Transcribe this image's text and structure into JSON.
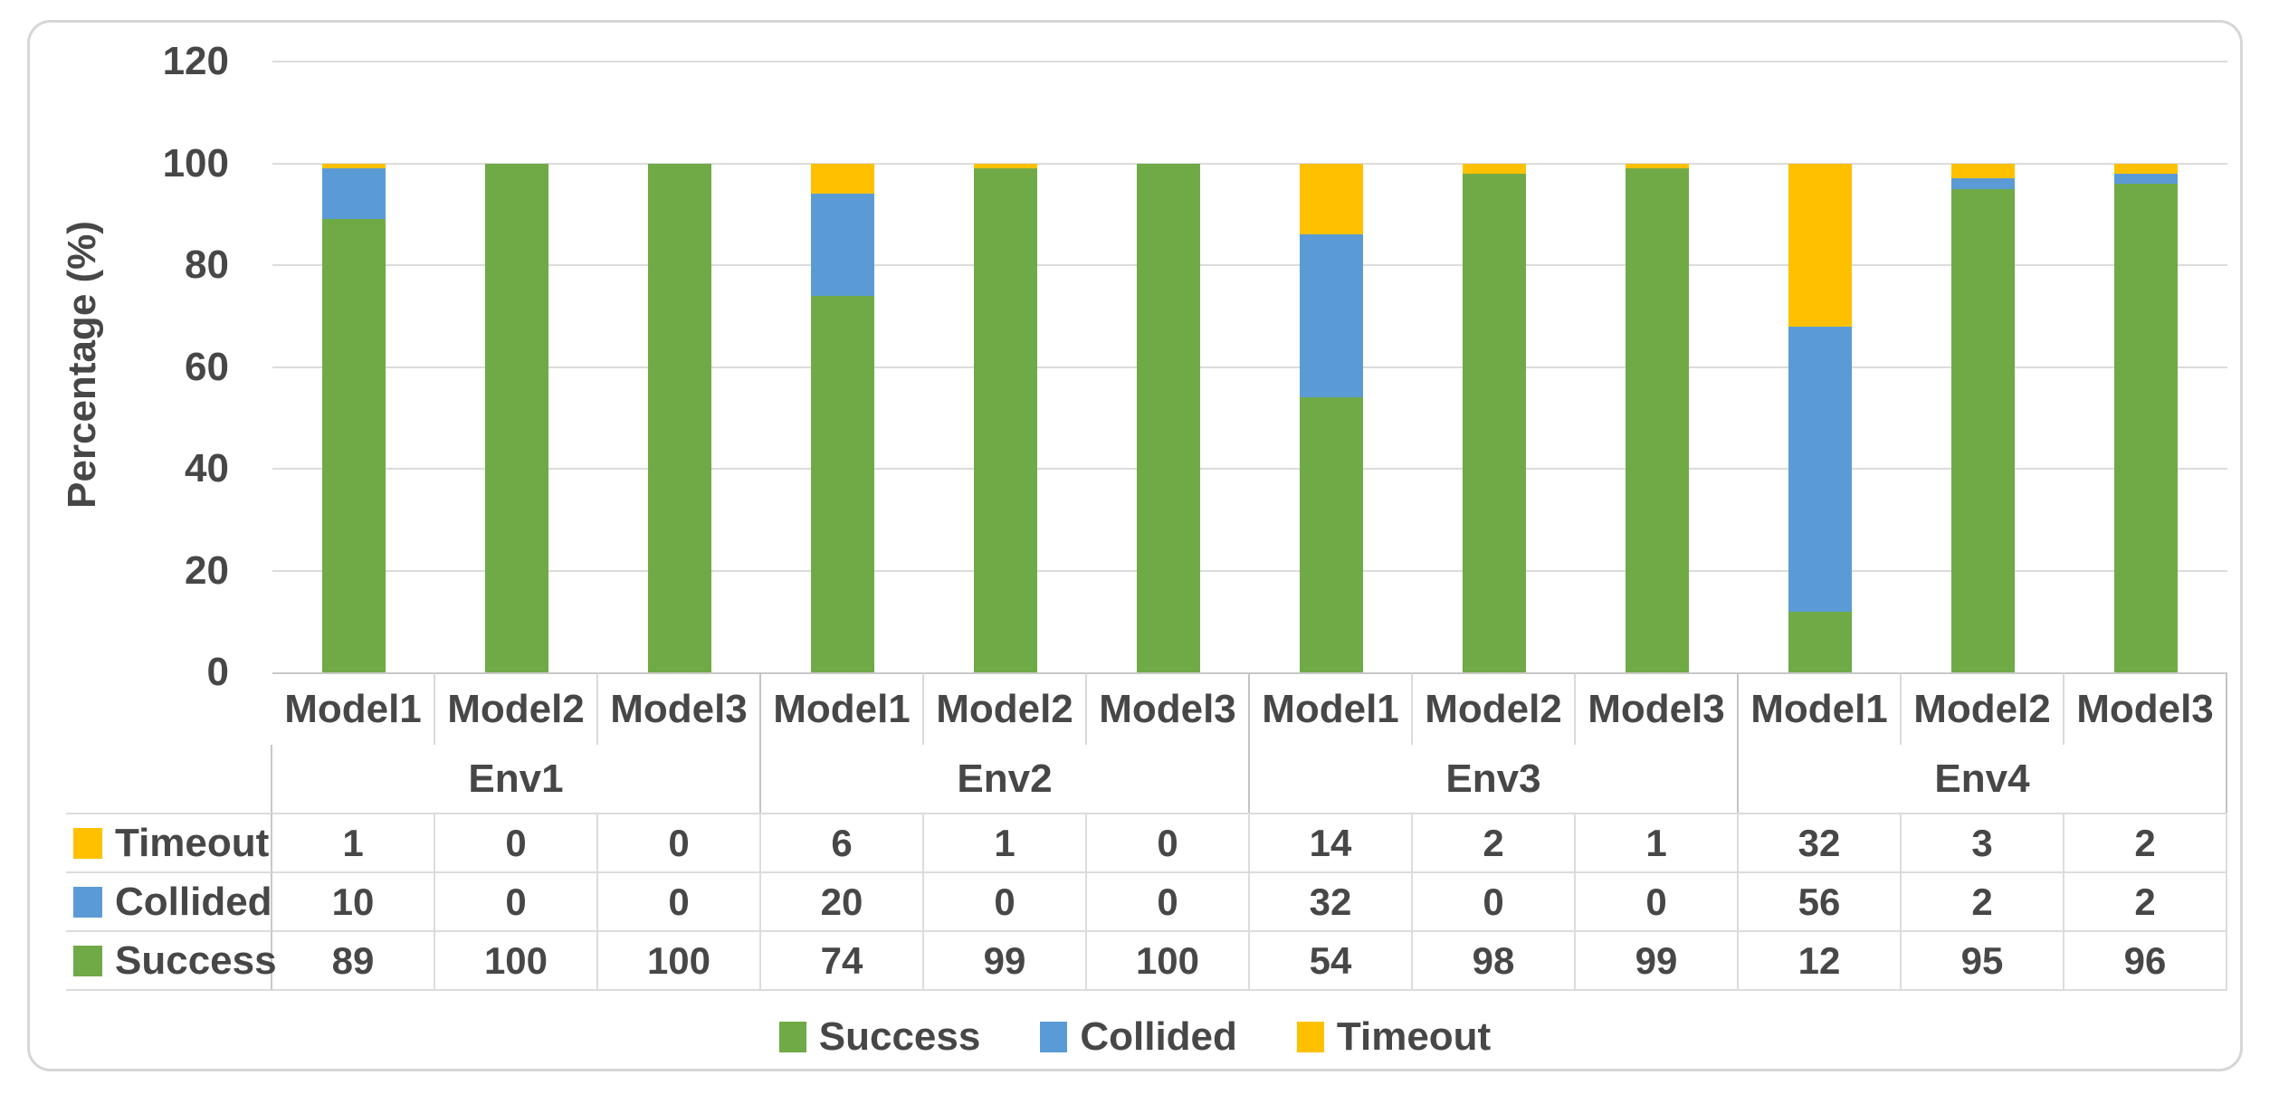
{
  "chart_data": {
    "type": "bar",
    "stacked": true,
    "title": "",
    "ylabel": "Percentage (%)",
    "xlabel": "",
    "ylim": [
      0,
      120
    ],
    "yticks": [
      120,
      100,
      80,
      60,
      40,
      20,
      0
    ],
    "grid": true,
    "legend_position": "bottom",
    "legend": [
      "Success",
      "Collided",
      "Timeout"
    ],
    "env_groups": [
      "Env1",
      "Env2",
      "Env3",
      "Env4"
    ],
    "models_per_group": [
      "Model1",
      "Model2",
      "Model3"
    ],
    "categories": [
      "Model1",
      "Model2",
      "Model3",
      "Model1",
      "Model2",
      "Model3",
      "Model1",
      "Model2",
      "Model3",
      "Model1",
      "Model2",
      "Model3"
    ],
    "series": [
      {
        "name": "Success",
        "color": "#6faa47",
        "values": [
          89,
          100,
          100,
          74,
          99,
          100,
          54,
          98,
          99,
          12,
          95,
          96
        ]
      },
      {
        "name": "Collided",
        "color": "#5b9bd5",
        "values": [
          10,
          0,
          0,
          20,
          0,
          0,
          32,
          0,
          0,
          56,
          2,
          2
        ]
      },
      {
        "name": "Timeout",
        "color": "#ffc000",
        "values": [
          1,
          0,
          0,
          6,
          1,
          0,
          14,
          2,
          1,
          32,
          3,
          2
        ]
      }
    ],
    "table_row_order": [
      "Timeout",
      "Collided",
      "Success"
    ]
  },
  "colors": {
    "success": "#6faa47",
    "collided": "#5b9bd5",
    "timeout": "#ffc000",
    "gridline": "#dcdcdc",
    "text": "#474747"
  }
}
